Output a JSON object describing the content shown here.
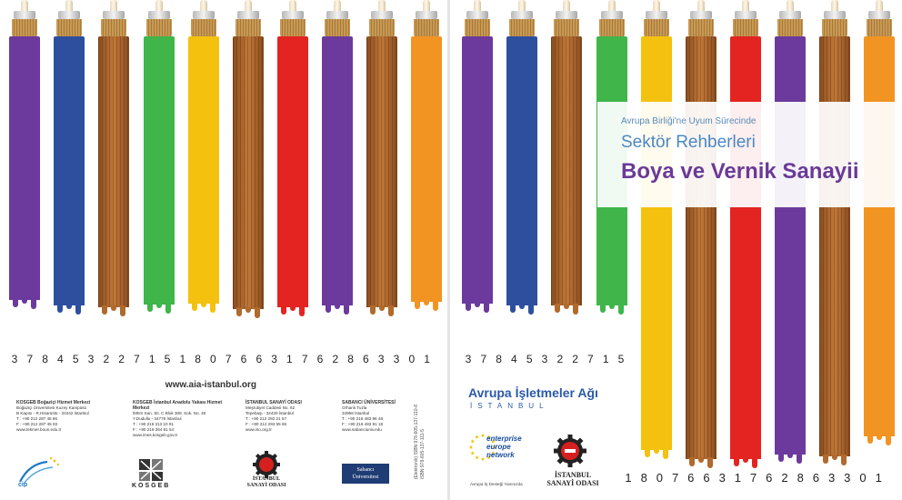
{
  "back_cover": {
    "brush_digits": [
      "3",
      "7",
      "8",
      "4",
      "5",
      "3",
      "2",
      "2",
      "7",
      "1",
      "5",
      "1",
      "8",
      "0",
      "7",
      "6",
      "6",
      "3",
      "1",
      "7",
      "6",
      "2",
      "8",
      "6",
      "3",
      "3",
      "0",
      "1"
    ],
    "website": "www.aia-istanbul.org",
    "centres": [
      {
        "title": "KOSGEB Boğaziçi Hizmet Merkezi",
        "lines": [
          "Boğaziçi Üniversitesi Kuzey Kampüsü",
          "B Kapısı - R.Hisarüstü - 34342 İstanbul",
          "T : +90 212 287 45 86",
          "F : +90 212 287 45 93",
          "www.tekmer.boun.edu.tr"
        ]
      },
      {
        "title": "KOSGEB İstanbul Anadolu Yakası Hizmet Merkezi",
        "lines": [
          "İMES San. Sit. C Blok 308. Sok. No. 46",
          "Y.Dudullu - 34776 İstanbul",
          "T : +90 216 313 10 91",
          "F : +90 216 364 81 54",
          "www.imes.kosgeb.gov.tr"
        ]
      },
      {
        "title": "İSTANBUL SANAYİ ODASI",
        "lines": [
          "Meşrutiyet Caddesi No. 62",
          "Tepebaşı - 34430 İstanbul",
          "T : +90 212 292 21 57",
          "F : +90 212 293 55 65",
          "www.iso.org.tr"
        ]
      },
      {
        "title": "SABANCI ÜNİVERSİTESİ",
        "lines": [
          "Orhanlı Tuzla",
          "34956 İstanbul",
          "T : +90 216 483 96 48",
          "F : +90 216 483 91 18",
          "www.sabanciuniv.edu"
        ]
      }
    ],
    "isbn_lines": [
      "(Elektronik) ISBN 978-605-137-110-8",
      "ISBN 978-605-137-111-5"
    ],
    "logos": {
      "kosgeb": "KOSGEB",
      "iso": [
        "İSTANBUL",
        "SANAYİ ODASI"
      ],
      "sabanci": [
        "Sabancı",
        "Üniversitesi"
      ]
    }
  },
  "front_cover": {
    "subtitle": "Avrupa Birliği'ne Uyum Sürecinde",
    "series": "Sektör Rehberleri",
    "title": "Boya ve Vernik Sanayii",
    "digits_short": [
      "3",
      "7",
      "8",
      "4",
      "5",
      "3",
      "2",
      "2",
      "7",
      "1",
      "5"
    ],
    "digits_long": [
      "1",
      "8",
      "0",
      "7",
      "6",
      "6",
      "3",
      "1",
      "7",
      "6",
      "2",
      "8",
      "6",
      "3",
      "3",
      "0",
      "1"
    ],
    "network_name": "Avrupa İşletmeler Ağı",
    "network_city": "İSTANBUL",
    "een_lines": [
      "enterprise",
      "europe",
      "network"
    ],
    "een_tagline": "Avrupa İş Desteği Yanınızda",
    "iso_lines": [
      "İSTANBUL",
      "SANAYİ ODASI"
    ]
  },
  "colors": {
    "purple": "#6b3a9c",
    "blue": "#2e4f9e",
    "wood": "#b06a2c",
    "green": "#3fb54a",
    "yellow": "#f4c20e",
    "red": "#e32421",
    "orange": "#f29422"
  }
}
